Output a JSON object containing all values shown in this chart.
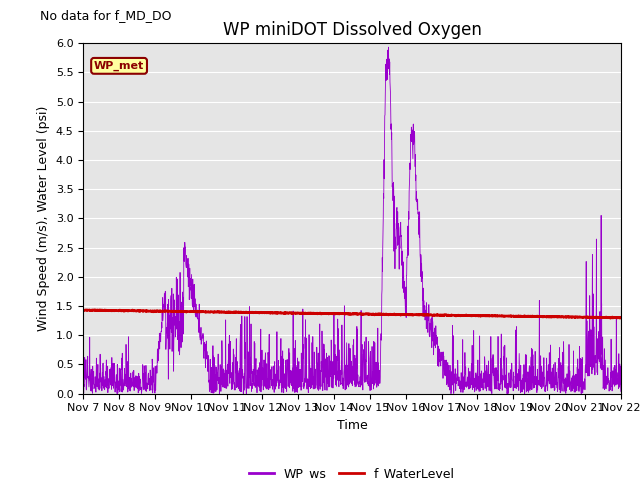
{
  "title": "WP miniDOT Dissolved Oxygen",
  "no_data_text": "No data for f_MD_DO",
  "ylabel": "Wind Speed (m/s), Water Level (psi)",
  "xlabel": "Time",
  "ylim": [
    0.0,
    6.0
  ],
  "yticks": [
    0.0,
    0.5,
    1.0,
    1.5,
    2.0,
    2.5,
    3.0,
    3.5,
    4.0,
    4.5,
    5.0,
    5.5,
    6.0
  ],
  "x_tick_labels": [
    "Nov 7",
    "Nov 8",
    "Nov 9",
    "Nov 10",
    "Nov 11",
    "Nov 12",
    "Nov 13",
    "Nov 14",
    "Nov 15",
    "Nov 16",
    "Nov 17",
    "Nov 18",
    "Nov 19",
    "Nov 20",
    "Nov 21",
    "Nov 22"
  ],
  "wp_ws_color": "#9900CC",
  "f_wl_color": "#CC0000",
  "background_color": "#E5E5E5",
  "legend_box_text": "WP_met",
  "legend_box_bg": "#FFFFA0",
  "legend_box_border": "#8B0000",
  "title_fontsize": 12,
  "label_fontsize": 9,
  "tick_fontsize": 8,
  "no_data_fontsize": 9
}
